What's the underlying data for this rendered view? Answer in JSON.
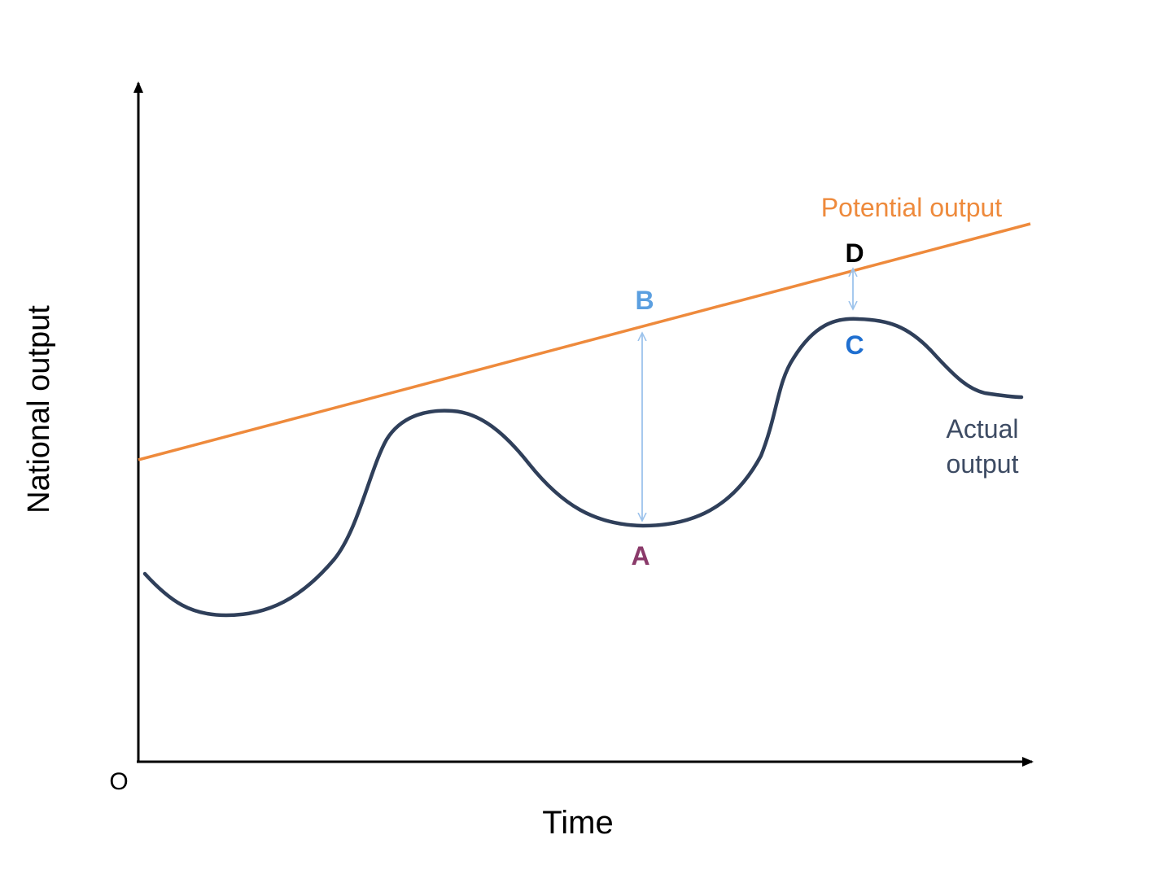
{
  "diagram": {
    "origin_label": "O",
    "x_axis_label": "Time",
    "y_axis_label": "National output",
    "potential_output_label": "Potential output",
    "actual_output_label_line1": "Actual",
    "actual_output_label_line2": "output",
    "point_labels": {
      "A": "A",
      "B": "B",
      "C": "C",
      "D": "D"
    },
    "colors": {
      "axes": "#000000",
      "potential_output": "#ee8a3c",
      "actual_output": "#2f3f5a",
      "gap_arrow": "#9cc3ec",
      "label_A": "#8a3a6a",
      "label_B": "#5b9fe0",
      "label_C": "#1f6fd0",
      "label_D": "#000000",
      "actual_label": "#3d4b63"
    }
  }
}
